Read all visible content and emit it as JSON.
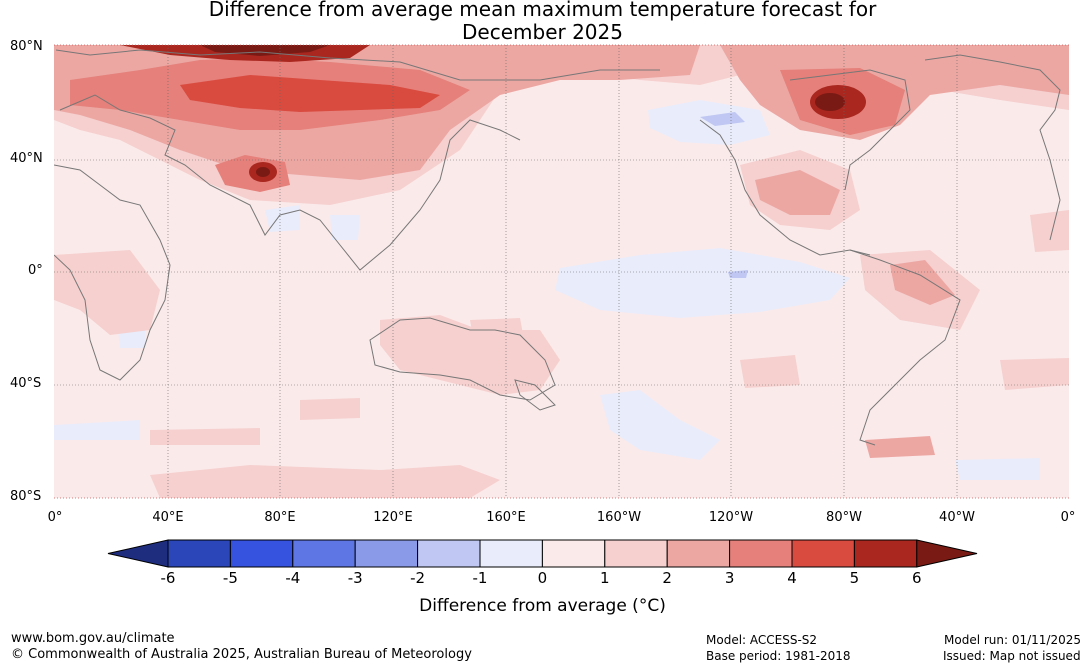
{
  "title": {
    "line1": "Difference from average mean maximum temperature forecast for",
    "line2": "December 2025"
  },
  "axes": {
    "lat_labels": [
      "80°N",
      "40°N",
      "0°",
      "40°S",
      "80°S"
    ],
    "lon_labels": [
      "0°",
      "40°E",
      "80°E",
      "120°E",
      "160°E",
      "160°W",
      "120°W",
      "80°W",
      "40°W",
      "0°"
    ]
  },
  "colorbar": {
    "title": "Difference from average (",
    "unit_symbol": "°C",
    "ticks": [
      "-6",
      "-5",
      "-4",
      "-3",
      "-2",
      "-1",
      "0",
      "1",
      "2",
      "3",
      "4",
      "5",
      "6"
    ],
    "colors": [
      "#1e2d7e",
      "#2a46b8",
      "#3653e0",
      "#5e76e4",
      "#8a9ae8",
      "#bfc7f2",
      "#e9ecfa",
      "#fbeaea",
      "#f5d0cf",
      "#eca7a3",
      "#e5807a",
      "#d94a3f",
      "#a9271f",
      "#7a1a14"
    ]
  },
  "footer": {
    "website": "www.bom.gov.au/climate",
    "copyright": "© Commonwealth of Australia 2025, Australian Bureau of Meteorology",
    "model": "Model: ACCESS-S2",
    "base_period": "Base period: 1981-2018",
    "model_run": "Model run: 01/11/2025",
    "issued": "Issued: Map not issued"
  }
}
